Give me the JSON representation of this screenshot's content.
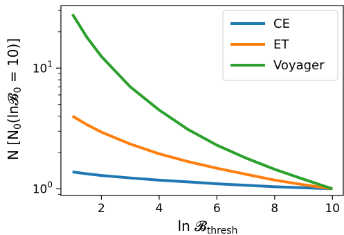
{
  "chart_data": {
    "type": "line",
    "xlabel": "ln 𝓑thresh",
    "xlabel_main": "ln 𝓑",
    "xlabel_sub": "thresh",
    "ylabel": "N [N0(ln𝓑0 = 10)]",
    "ylabel_main": "N [N",
    "ylabel_sub0": "0",
    "ylabel_mid": "(ln𝓑",
    "ylabel_sub1": "0",
    "ylabel_end": " = 10)]",
    "xlim": [
      0.6,
      10.4
    ],
    "ylim": [
      0.88,
      33
    ],
    "yscale": "log",
    "xticks": [
      2,
      4,
      6,
      8,
      10
    ],
    "xtick_labels": [
      "2",
      "4",
      "6",
      "8",
      "10"
    ],
    "yticks": [
      1,
      10
    ],
    "ytick_base": [
      "10",
      "10"
    ],
    "ytick_exp": [
      "0",
      "1"
    ],
    "legend_position": "top-right",
    "x": [
      1,
      1.5,
      2,
      3,
      4,
      5,
      6,
      7,
      8,
      9,
      10
    ],
    "series": [
      {
        "name": "CE",
        "color": "#1f77b4",
        "values": [
          1.38,
          1.33,
          1.29,
          1.23,
          1.18,
          1.14,
          1.1,
          1.07,
          1.04,
          1.02,
          1.0
        ]
      },
      {
        "name": "ET",
        "color": "#ff7f0e",
        "values": [
          4.0,
          3.4,
          2.95,
          2.35,
          1.95,
          1.68,
          1.48,
          1.32,
          1.18,
          1.08,
          1.0
        ]
      },
      {
        "name": "Voyager",
        "color": "#2ca02c",
        "values": [
          28.0,
          18.0,
          12.5,
          7.0,
          4.5,
          3.1,
          2.3,
          1.8,
          1.45,
          1.2,
          1.0
        ]
      }
    ]
  }
}
